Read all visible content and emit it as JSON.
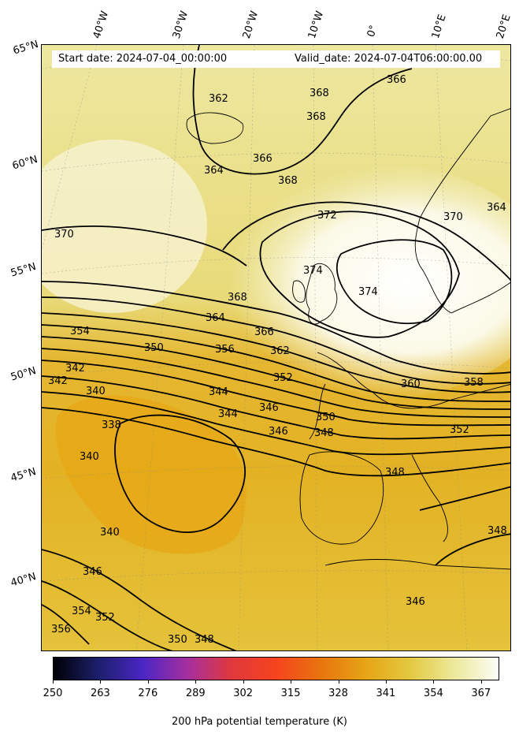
{
  "header": {
    "start_date": "Start date: 2024-07-04_00:00:00",
    "valid_date": "Valid_date: 2024-07-04T06:00:00.00"
  },
  "lat_labels": [
    "65°N",
    "60°N",
    "55°N",
    "50°N",
    "45°N",
    "40°N"
  ],
  "lon_labels": [
    "40°W",
    "30°W",
    "20°W",
    "10°W",
    "0°",
    "10°E",
    "20°E"
  ],
  "colorbar": {
    "label": "200 hPa potential temperature (K)",
    "ticks": [
      "250",
      "263",
      "276",
      "289",
      "302",
      "315",
      "328",
      "341",
      "354",
      "367"
    ],
    "range": [
      250,
      372
    ],
    "colormap": [
      "#000004",
      "#1c1f6b",
      "#4a26c4",
      "#a52fa0",
      "#e0383d",
      "#f6441e",
      "#e8740e",
      "#e6a415",
      "#e3c840",
      "#ece99a",
      "#fcfdf6"
    ]
  },
  "contour_labels": [
    "370",
    "368",
    "368",
    "368",
    "366",
    "366",
    "362",
    "364",
    "364",
    "370",
    "372",
    "374",
    "374",
    "368",
    "364",
    "366",
    "362",
    "354",
    "350",
    "356",
    "352",
    "342",
    "342",
    "340",
    "344",
    "344",
    "346",
    "346",
    "348",
    "350",
    "338",
    "340",
    "340",
    "346",
    "352",
    "354",
    "356",
    "350",
    "348",
    "348",
    "348",
    "346",
    "352",
    "358",
    "360"
  ]
}
